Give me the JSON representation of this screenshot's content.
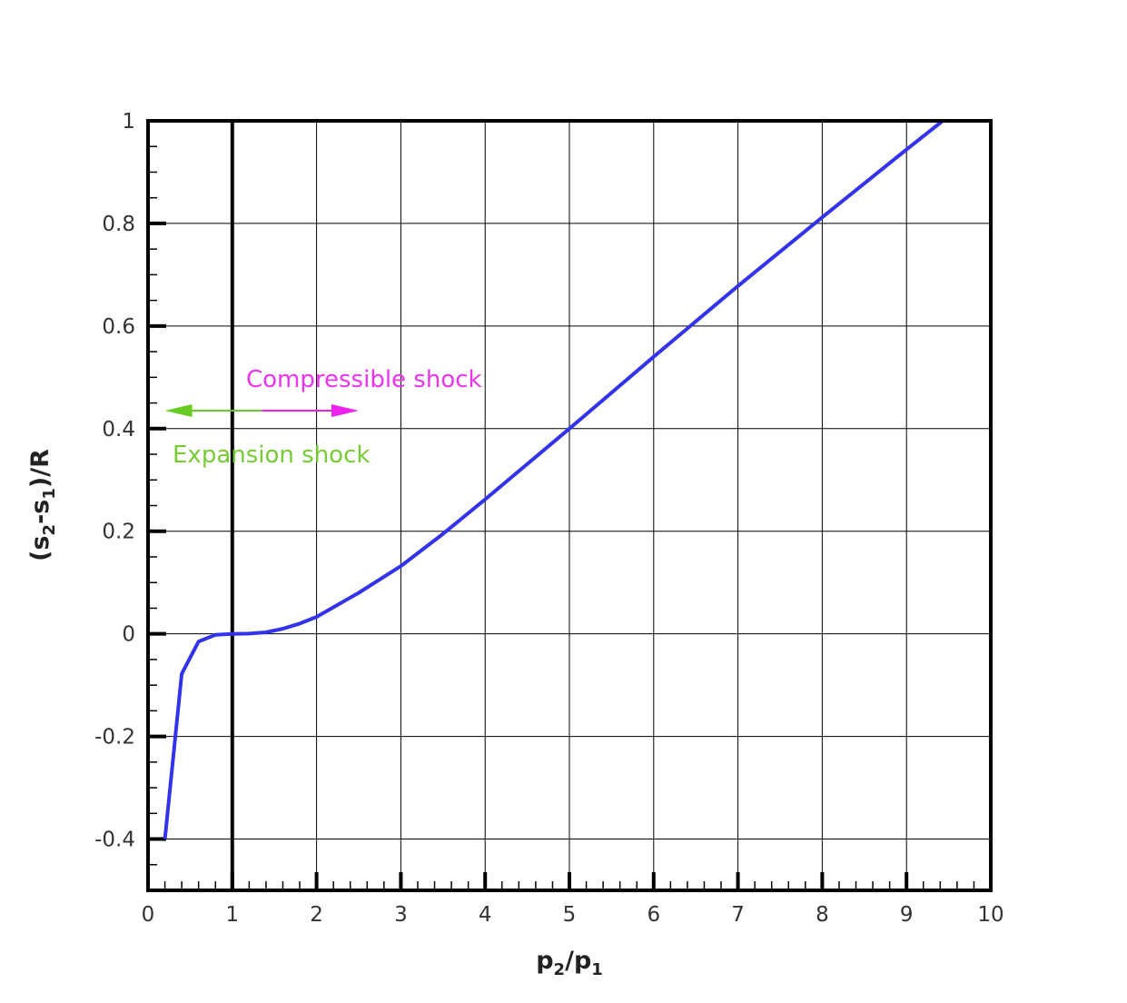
{
  "chart_data": {
    "type": "line",
    "xlabel": {
      "base1": "p",
      "sub1": "2",
      "slash": "/",
      "base2": "p",
      "sub2": "1"
    },
    "ylabel": {
      "open": "(s",
      "sub1": "2",
      "mid": "-s",
      "sub2": "1",
      "close": ")/R"
    },
    "xlim": [
      0,
      10
    ],
    "ylim": [
      -0.5,
      1
    ],
    "x_ticks": [
      0,
      1,
      2,
      3,
      4,
      5,
      6,
      7,
      8,
      9,
      10
    ],
    "x_tick_labels": [
      "0",
      "1",
      "2",
      "3",
      "4",
      "5",
      "6",
      "7",
      "8",
      "9",
      "10"
    ],
    "y_ticks": [
      -0.4,
      -0.2,
      0,
      0.2,
      0.4,
      0.6,
      0.8,
      1
    ],
    "y_tick_labels": [
      "-0.4",
      "-0.2",
      "0",
      "0.2",
      "0.4",
      "0.6",
      "0.8",
      "1"
    ],
    "grid": true,
    "reference_line_x": 1,
    "series": [
      {
        "color": "#3333ee",
        "x": [
          0.2,
          0.4,
          0.6,
          0.8,
          1.0,
          1.2,
          1.4,
          1.6,
          1.8,
          2.0,
          2.5,
          3.0,
          3.5,
          4.0,
          5.0,
          6.0,
          7.0,
          8.0,
          9.0,
          9.43
        ],
        "y": [
          -0.4,
          -0.078,
          -0.015,
          -0.002,
          0.0,
          0.0005,
          0.003,
          0.01,
          0.02,
          0.033,
          0.08,
          0.132,
          0.195,
          0.262,
          0.4,
          0.54,
          0.678,
          0.812,
          0.944,
          1.0
        ]
      }
    ],
    "annotations": [
      {
        "text": "Compressible shock",
        "color": "#ee33ee"
      },
      {
        "text": "Expansion shock",
        "color": "#77cc33"
      }
    ],
    "arrow": {
      "x_start": 0.2,
      "x_end": 2.5,
      "y": 0.435,
      "left_color": "#66cc22",
      "right_color": "#ee22ee"
    }
  }
}
